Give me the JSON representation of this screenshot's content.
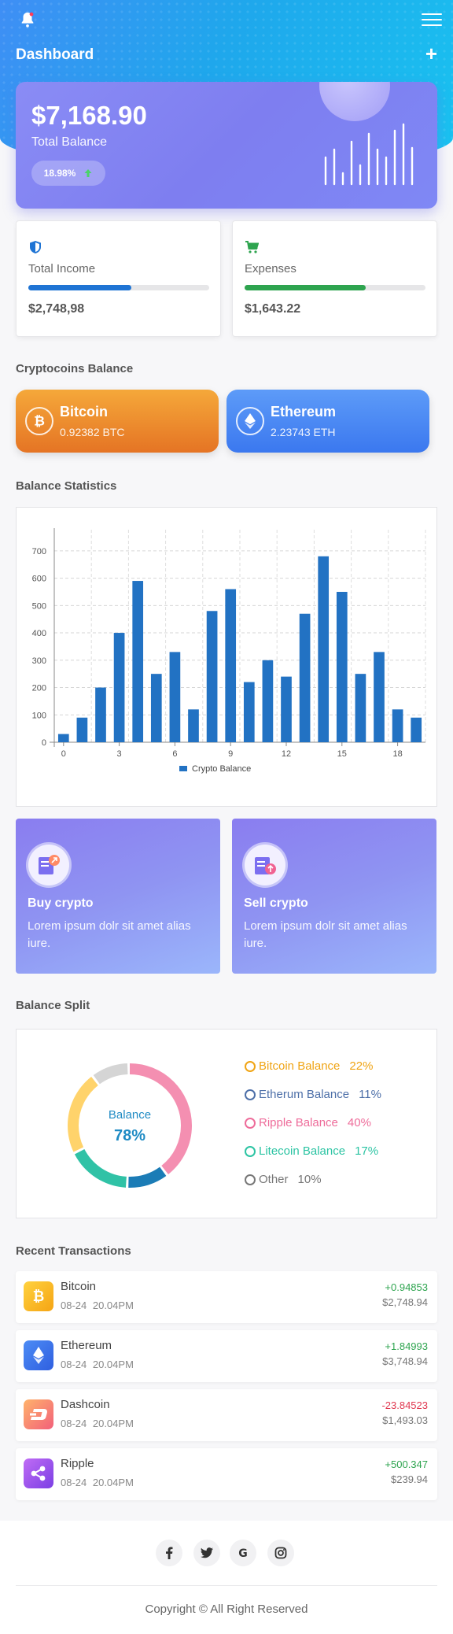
{
  "header": {
    "title": "Dashboard",
    "add_label": "+"
  },
  "balance": {
    "amount": "$7,168.90",
    "label": "Total Balance",
    "change": "18.98%"
  },
  "income": {
    "label": "Total Income",
    "value": "$2,748,98",
    "progress": 0.57,
    "color": "#1f74d4"
  },
  "expenses": {
    "label": "Expenses",
    "value": "$1,643.22",
    "progress": 0.67,
    "color": "#2ea44f"
  },
  "crypto_section": {
    "title": "Cryptocoins Balance",
    "coins": [
      {
        "name": "Bitcoin",
        "amount": "0.92382 BTC"
      },
      {
        "name": "Ethereum",
        "amount": "2.23743 ETH"
      }
    ]
  },
  "stats_section": {
    "title": "Balance Statistics"
  },
  "chart_data": {
    "type": "bar",
    "x": [
      0,
      1,
      2,
      3,
      4,
      5,
      6,
      7,
      8,
      9,
      10,
      11,
      12,
      13,
      14,
      15,
      16,
      17,
      18,
      19
    ],
    "series": [
      {
        "name": "Crypto Balance",
        "values": [
          30,
          90,
          200,
          400,
          590,
          250,
          330,
          120,
          480,
          560,
          220,
          300,
          240,
          470,
          680,
          550,
          250,
          330,
          120,
          90
        ]
      }
    ],
    "xticks": [
      0,
      3,
      6,
      9,
      12,
      15,
      18
    ],
    "yticks": [
      0,
      100,
      200,
      300,
      400,
      500,
      600,
      700
    ],
    "ylim": [
      0,
      760
    ],
    "grid": true,
    "legend_placement": "bottom",
    "color": "#2272c3"
  },
  "actions": [
    {
      "title": "Buy crypto",
      "description": "Lorem ipsum dolr sit amet alias iure."
    },
    {
      "title": "Sell crypto",
      "description": "Lorem ipsum dolr sit amet alias iure."
    }
  ],
  "split_section": {
    "title": "Balance Split",
    "center_label": "Balance",
    "center_value": "78%",
    "items": [
      {
        "name": "Bitcoin Balance",
        "percent": "22%",
        "value": 22,
        "color": "#f0a414"
      },
      {
        "name": "Etherum Balance",
        "percent": "11%",
        "value": 11,
        "color": "#4d6fa8"
      },
      {
        "name": "Ripple Balance",
        "percent": "40%",
        "value": 40,
        "color": "#ee6c9a"
      },
      {
        "name": "Litecoin Balance",
        "percent": "17%",
        "value": 17,
        "color": "#2cc4a3"
      },
      {
        "name": "Other",
        "percent": "10%",
        "value": 10,
        "color": "#777777"
      }
    ]
  },
  "transactions_section": {
    "title": "Recent Transactions",
    "rows": [
      {
        "name": "Bitcoin",
        "date": "08-24 20.04PM",
        "change": "+0.94853",
        "value": "$2,748.94",
        "positive": true
      },
      {
        "name": "Ethereum",
        "date": "08-24 20.04PM",
        "change": "+1.84993",
        "value": "$3,748.94",
        "positive": true
      },
      {
        "name": "Dashcoin",
        "date": "08-24 20.04PM",
        "change": "-23.84523",
        "value": "$1,493.03",
        "positive": false
      },
      {
        "name": "Ripple",
        "date": "08-24 20.04PM",
        "change": "+500.347",
        "value": "$239.94",
        "positive": true
      }
    ]
  },
  "footer": {
    "social": [
      "f",
      "t",
      "G",
      "ig"
    ],
    "copyright": "Copyright © All Right Reserved"
  }
}
